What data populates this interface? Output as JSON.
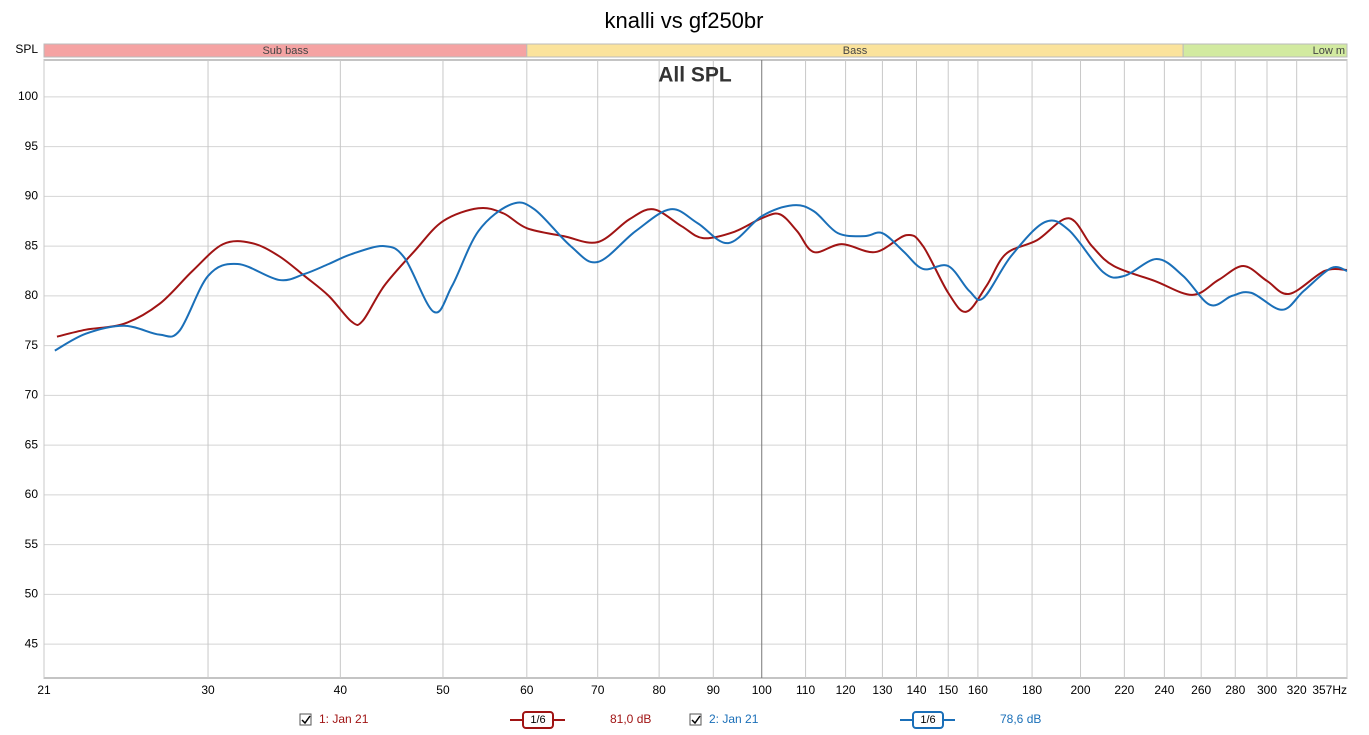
{
  "chart_data": {
    "type": "line",
    "title": "knalli vs gf250br",
    "subtitle": "All SPL",
    "y_label": "SPL",
    "x_scale": "log",
    "grid": true,
    "xlim": [
      21,
      357
    ],
    "ylim": [
      41.6,
      103.7
    ],
    "xticks": [
      21,
      30,
      40,
      50,
      60,
      70,
      80,
      90,
      100,
      110,
      120,
      130,
      140,
      150,
      160,
      180,
      200,
      220,
      240,
      260,
      280,
      300,
      320,
      {
        "value": 357,
        "label": "357Hz"
      }
    ],
    "yticks": [
      45,
      50,
      55,
      60,
      65,
      70,
      75,
      80,
      85,
      90,
      95,
      100
    ],
    "bands": [
      {
        "name": "Sub bass",
        "from": 21,
        "to": 60,
        "color": "#f5a3a3"
      },
      {
        "name": "Bass",
        "from": 60,
        "to": 250,
        "color": "#fbe39c"
      },
      {
        "name": "Low m",
        "from": 250,
        "to": 357,
        "color": "#d2eaa0"
      }
    ],
    "series": [
      {
        "name": "1: Jan 21",
        "color": "#a01414",
        "smoothing": "1/6",
        "level": "81,0 dB",
        "x": [
          21.6,
          23,
          25,
          27,
          29,
          31,
          33,
          35,
          37,
          39,
          41,
          42,
          44,
          47,
          50,
          54,
          57,
          60,
          65,
          70,
          75,
          79,
          84,
          88,
          94,
          100,
          104,
          108,
          112,
          119,
          128,
          137,
          142,
          150,
          156,
          163,
          170,
          182,
          195,
          205,
          215,
          235,
          255,
          270,
          285,
          300,
          315,
          340,
          357
        ],
        "values": [
          75.9,
          76.6,
          77.2,
          79.2,
          82.5,
          85.2,
          85.3,
          84.0,
          82.0,
          80.0,
          77.4,
          77.5,
          81.0,
          84.5,
          87.5,
          88.8,
          88.3,
          86.8,
          86.0,
          85.4,
          87.7,
          88.7,
          87.0,
          85.8,
          86.4,
          87.8,
          88.2,
          86.5,
          84.4,
          85.2,
          84.4,
          86.1,
          85.0,
          80.3,
          78.4,
          81.0,
          84.2,
          85.6,
          87.8,
          85.0,
          83.0,
          81.5,
          80.1,
          81.6,
          83.0,
          81.5,
          80.2,
          82.5,
          82.6
        ]
      },
      {
        "name": "2: Jan 21",
        "color": "#1a6fb8",
        "smoothing": "1/6",
        "level": "78,6 dB",
        "x": [
          21.5,
          23,
          25,
          27,
          28.2,
          30,
          32,
          35,
          37,
          39,
          41,
          44,
          46,
          49,
          51,
          54,
          58,
          61,
          66,
          70,
          76,
          82,
          87,
          93,
          100,
          107,
          112,
          118,
          125,
          130,
          136,
          142,
          150,
          157,
          162,
          172,
          185,
          195,
          210,
          220,
          236,
          250,
          265,
          278,
          290,
          310,
          325,
          345,
          357
        ],
        "values": [
          74.5,
          76.2,
          77.0,
          76.1,
          76.5,
          82.0,
          83.2,
          81.6,
          82.2,
          83.2,
          84.2,
          85.0,
          83.8,
          78.4,
          81.0,
          86.5,
          89.2,
          88.7,
          85.0,
          83.4,
          86.5,
          88.7,
          87.3,
          85.3,
          88.0,
          89.1,
          88.5,
          86.3,
          86.0,
          86.3,
          84.5,
          82.7,
          83.0,
          80.5,
          79.8,
          84.0,
          87.4,
          86.6,
          82.4,
          82.0,
          83.7,
          82.0,
          79.1,
          80.0,
          80.3,
          78.6,
          80.5,
          82.8,
          82.5
        ]
      }
    ]
  }
}
